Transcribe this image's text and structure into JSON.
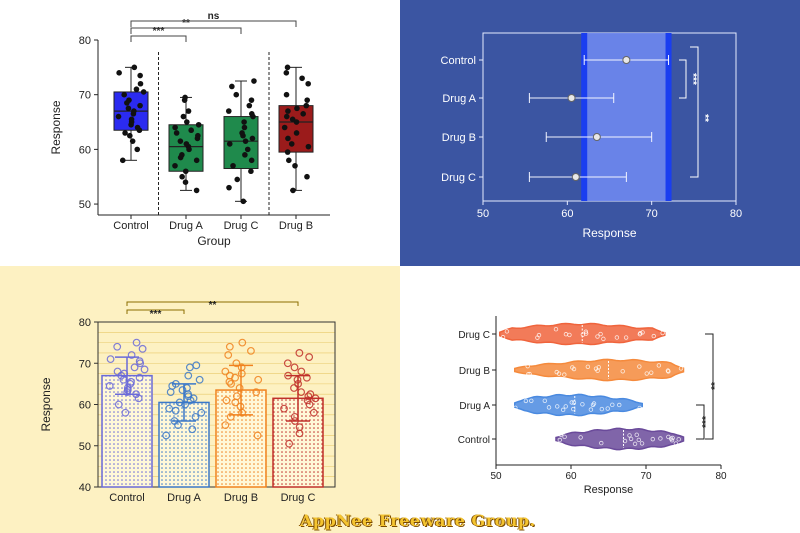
{
  "chart_data": [
    {
      "type": "box",
      "xlabel": "Group",
      "ylabel": "Response",
      "ylim": [
        48,
        80
      ],
      "yticks": [
        50,
        60,
        70,
        80
      ],
      "categories": [
        "Control",
        "Drug A",
        "Drug C",
        "Drug B"
      ],
      "colors": [
        "#2b2bf0",
        "#1f8a4c",
        "#1f8a4c",
        "#9b1b1b"
      ],
      "boxes": [
        {
          "q1": 63.5,
          "median": 67,
          "q3": 70.5,
          "min": 58,
          "max": 75
        },
        {
          "q1": 56,
          "median": 60.5,
          "q3": 64.5,
          "min": 52.5,
          "max": 69.5
        },
        {
          "q1": 56.5,
          "median": 61.5,
          "q3": 66,
          "min": 50.5,
          "max": 72.5
        },
        {
          "q1": 59.5,
          "median": 65,
          "q3": 68,
          "min": 52.5,
          "max": 75
        }
      ],
      "points": [
        [
          58,
          60,
          61.5,
          62.5,
          63,
          63.5,
          64,
          64.5,
          65,
          65.5,
          66,
          66.5,
          67,
          67.5,
          68,
          68.5,
          69,
          70,
          70.5,
          71,
          72,
          73.5,
          74,
          75
        ],
        [
          52.5,
          54,
          55,
          56,
          57,
          58,
          58.5,
          59,
          60,
          60.5,
          61,
          61.5,
          62,
          62.5,
          63,
          63.5,
          64,
          64.5,
          65,
          66,
          67,
          69,
          69.5
        ],
        [
          50.5,
          53,
          54.5,
          56,
          57,
          58,
          59,
          60,
          61,
          61.5,
          62,
          62.5,
          63,
          64,
          65,
          66,
          66.5,
          67,
          68,
          69,
          70,
          71.5,
          72.5
        ],
        [
          52.5,
          55,
          57,
          58,
          59.5,
          60.5,
          61,
          62,
          63,
          64,
          65,
          65.5,
          66,
          66.5,
          67,
          67.5,
          68,
          69,
          70,
          72,
          73,
          74,
          75
        ]
      ],
      "significance": [
        {
          "from": "Control",
          "to": "Drug A",
          "label": "***"
        },
        {
          "from": "Control",
          "to": "Drug C",
          "label": "**"
        },
        {
          "from": "Control",
          "to": "Drug B",
          "label": "ns"
        }
      ]
    },
    {
      "type": "interval",
      "xlabel": "Response",
      "xlim": [
        50,
        80
      ],
      "xticks": [
        50,
        60,
        70,
        80
      ],
      "categories": [
        "Control",
        "Drug A",
        "Drug B",
        "Drug C"
      ],
      "means": [
        67,
        60.5,
        63.5,
        61
      ],
      "lower": [
        62,
        55.5,
        57.5,
        55.5
      ],
      "upper": [
        72,
        65.5,
        70,
        67
      ],
      "band": [
        62,
        72
      ],
      "significance": [
        {
          "from": "Control",
          "to": "Drug A",
          "label": "***"
        },
        {
          "from": "Control",
          "to": "Drug C",
          "label": "**"
        }
      ]
    },
    {
      "type": "bar",
      "ylabel": "Response",
      "ylim": [
        40,
        80
      ],
      "yticks": [
        40,
        50,
        60,
        70,
        80
      ],
      "categories": [
        "Control",
        "Drug A",
        "Drug B",
        "Drug C"
      ],
      "values": [
        67,
        60.5,
        63.5,
        61.5
      ],
      "errors": [
        4.5,
        4.5,
        6,
        5.5
      ],
      "colors": [
        "#6a6ad8",
        "#3b78c8",
        "#f0821e",
        "#c0302a"
      ],
      "points": [
        [
          58,
          60,
          61.5,
          62.5,
          63,
          63.5,
          64,
          64.5,
          65,
          65.5,
          66,
          66.5,
          67,
          67.5,
          68,
          68.5,
          69,
          70,
          70.5,
          71,
          72,
          73.5,
          74,
          75
        ],
        [
          52.5,
          54,
          55,
          56,
          57,
          58,
          58.5,
          59,
          60,
          60.5,
          61,
          61.5,
          62,
          62.5,
          63,
          63.5,
          64,
          64.5,
          65,
          66,
          67,
          69,
          69.5
        ],
        [
          52.5,
          55,
          57,
          58,
          59.5,
          60.5,
          61,
          62,
          63,
          64,
          65,
          65.5,
          66,
          66.5,
          67,
          67.5,
          68,
          69,
          70,
          72,
          73,
          74,
          75
        ],
        [
          50.5,
          53,
          54.5,
          56,
          57,
          58,
          59,
          60,
          61,
          61.5,
          62,
          62.5,
          63,
          64,
          65,
          66,
          66.5,
          67,
          68,
          69,
          70,
          71.5,
          72.5
        ]
      ],
      "significance": [
        {
          "from": "Control",
          "to": "Drug A",
          "label": "***"
        },
        {
          "from": "Control",
          "to": "Drug C",
          "label": "**"
        }
      ]
    },
    {
      "type": "violin",
      "xlabel": "Response",
      "xlim": [
        50,
        80
      ],
      "xticks": [
        50,
        60,
        70,
        80
      ],
      "categories": [
        "Drug C",
        "Drug B",
        "Drug A",
        "Control"
      ],
      "colors": [
        "#f0643c",
        "#f58a3c",
        "#4a8ae0",
        "#6a4a9a"
      ],
      "ranges": [
        [
          50.5,
          72.5
        ],
        [
          52.5,
          75
        ],
        [
          52.5,
          69.5
        ],
        [
          58,
          75
        ]
      ],
      "medians": [
        61.5,
        65,
        60.5,
        67
      ],
      "modes": [
        61,
        66,
        60,
        67
      ],
      "significance": [
        {
          "from": "Control",
          "to": "Drug A",
          "label": "***"
        },
        {
          "from": "Control",
          "to": "Drug C",
          "label": "**"
        }
      ]
    }
  ],
  "watermark": "AppNee Freeware Group."
}
